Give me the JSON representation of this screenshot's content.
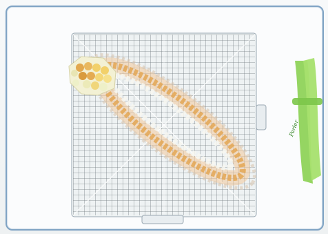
{
  "scene": {
    "board_brand": "",
    "tweezer_brand": "Perler"
  },
  "colors": {
    "frame": "#7fa3c4",
    "grid": "#505a62",
    "bead_orange": "#e3a95a",
    "bead_yellow": "#f2d06a",
    "bead_cream": "#eef0c8",
    "bead_white": "#f7f7f0",
    "tweezers": "#8fd35a"
  }
}
